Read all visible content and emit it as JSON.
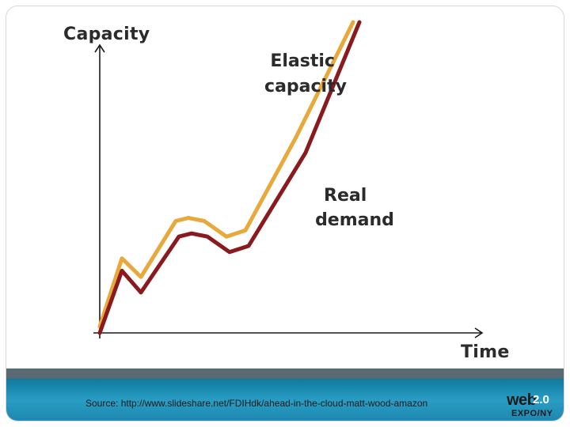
{
  "chart_data": {
    "type": "line",
    "xlabel": "Time",
    "ylabel": "Capacity",
    "xlim": [
      0,
      100
    ],
    "ylim": [
      0,
      100
    ],
    "grid": false,
    "series": [
      {
        "name": "Elastic capacity",
        "color": "#e8a93c",
        "x": [
          0,
          7,
          13,
          24,
          28,
          33,
          40,
          46,
          62,
          80
        ],
        "y": [
          2,
          24,
          18,
          36,
          37,
          36,
          31,
          33,
          63,
          100
        ]
      },
      {
        "name": "Real demand",
        "color": "#8b1a1e",
        "x": [
          0,
          7,
          13,
          25,
          29,
          34,
          41,
          47,
          65,
          82
        ],
        "y": [
          0,
          20,
          13,
          31,
          32,
          31,
          26,
          28,
          58,
          100
        ]
      }
    ]
  },
  "footer": {
    "source": "Source: http://www.slideshare.net/FDIHdk/ahead-in-the-cloud-matt-wood-amazon"
  },
  "logo": {
    "word": "web",
    "version": "2.0",
    "sub": "EXPO/NY"
  }
}
